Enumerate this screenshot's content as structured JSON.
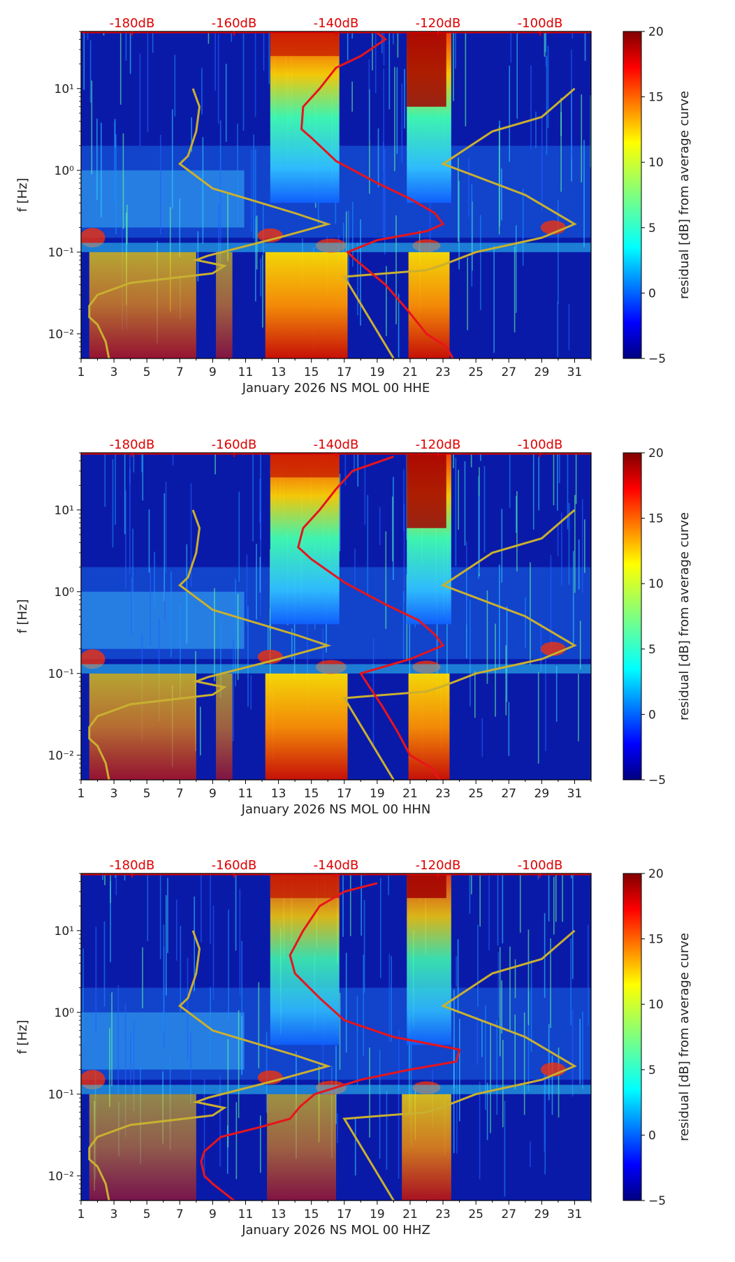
{
  "chart_data": [
    {
      "type": "heatmap",
      "xlabel": "January 2026 NS MOL 00 HHE",
      "ylabel": "f [Hz]",
      "x_ticks": [
        "1",
        "3",
        "5",
        "7",
        "9",
        "11",
        "13",
        "15",
        "17",
        "19",
        "21",
        "23",
        "25",
        "27",
        "29",
        "31"
      ],
      "y_ticks": [
        "10⁻²",
        "10⁻¹",
        "10⁰",
        "10¹"
      ],
      "xlim": [
        1,
        32
      ],
      "ylim_hz": [
        0.005,
        50
      ],
      "db_scale_labels": [
        "-180dB",
        "-160dB",
        "-140dB",
        "-120dB",
        "-100dB"
      ],
      "db_scale_range": [
        -190,
        -90
      ],
      "colorbar": {
        "label": "residual [dB] from average curve",
        "min": -5,
        "max": 20,
        "ticks": [
          "20",
          "15",
          "10",
          "5",
          "0",
          "−5"
        ]
      },
      "noise_model_curve": [
        [
          2.7,
          0.005
        ],
        [
          2.5,
          0.008
        ],
        [
          2.0,
          0.013
        ],
        [
          1.5,
          0.016
        ],
        [
          1.5,
          0.022
        ],
        [
          2.0,
          0.03
        ],
        [
          4.0,
          0.042
        ],
        [
          9.0,
          0.055
        ],
        [
          9.7,
          0.068
        ],
        [
          8.0,
          0.08
        ],
        [
          8.7,
          0.09
        ],
        [
          13.0,
          0.15
        ],
        [
          16.0,
          0.22
        ],
        [
          14.0,
          0.3
        ],
        [
          9.0,
          0.6
        ],
        [
          7.0,
          1.2
        ],
        [
          7.5,
          1.5
        ],
        [
          8.0,
          3.0
        ],
        [
          8.2,
          6.0
        ],
        [
          7.8,
          10.0
        ]
      ],
      "noise_model_curve_high": [
        [
          20.0,
          0.005
        ],
        [
          17.0,
          0.05
        ],
        [
          22.0,
          0.06
        ],
        [
          23.0,
          0.07
        ],
        [
          25.0,
          0.1
        ],
        [
          29.0,
          0.15
        ],
        [
          31.0,
          0.22
        ],
        [
          28.0,
          0.5
        ],
        [
          23.0,
          1.2
        ],
        [
          26.0,
          3.0
        ],
        [
          29.0,
          4.5
        ],
        [
          31.0,
          10.0
        ]
      ],
      "average_curve": [
        [
          23.6,
          0.005
        ],
        [
          23.2,
          0.007
        ],
        [
          22.0,
          0.01
        ],
        [
          20.8,
          0.02
        ],
        [
          19.5,
          0.04
        ],
        [
          17.7,
          0.08
        ],
        [
          17.2,
          0.1
        ],
        [
          19.0,
          0.14
        ],
        [
          22.0,
          0.18
        ],
        [
          23.0,
          0.22
        ],
        [
          22.5,
          0.3
        ],
        [
          21.0,
          0.45
        ],
        [
          19.0,
          0.7
        ],
        [
          16.5,
          1.3
        ],
        [
          15.0,
          2.5
        ],
        [
          14.4,
          3.2
        ],
        [
          14.5,
          6.0
        ],
        [
          15.5,
          10.0
        ],
        [
          16.5,
          18.0
        ],
        [
          18.0,
          25.0
        ],
        [
          19.5,
          40.0
        ],
        [
          19.0,
          48.0
        ]
      ]
    },
    {
      "type": "heatmap",
      "xlabel": "January 2026 NS MOL 00 HHN",
      "ylabel": "f [Hz]",
      "x_ticks": [
        "1",
        "3",
        "5",
        "7",
        "9",
        "11",
        "13",
        "15",
        "17",
        "19",
        "21",
        "23",
        "25",
        "27",
        "29",
        "31"
      ],
      "y_ticks": [
        "10⁻²",
        "10⁻¹",
        "10⁰",
        "10¹"
      ],
      "xlim": [
        1,
        32
      ],
      "ylim_hz": [
        0.005,
        50
      ],
      "db_scale_labels": [
        "-180dB",
        "-160dB",
        "-140dB",
        "-120dB",
        "-100dB"
      ],
      "db_scale_range": [
        -190,
        -90
      ],
      "colorbar": {
        "label": "residual [dB] from average curve",
        "min": -5,
        "max": 20,
        "ticks": [
          "20",
          "15",
          "10",
          "5",
          "0",
          "−5"
        ]
      },
      "noise_model_curve": [
        [
          2.7,
          0.005
        ],
        [
          2.5,
          0.008
        ],
        [
          2.0,
          0.013
        ],
        [
          1.5,
          0.016
        ],
        [
          1.5,
          0.022
        ],
        [
          2.0,
          0.03
        ],
        [
          4.0,
          0.042
        ],
        [
          9.0,
          0.055
        ],
        [
          9.7,
          0.068
        ],
        [
          8.0,
          0.08
        ],
        [
          8.7,
          0.09
        ],
        [
          13.0,
          0.15
        ],
        [
          16.0,
          0.22
        ],
        [
          14.0,
          0.3
        ],
        [
          9.0,
          0.6
        ],
        [
          7.0,
          1.2
        ],
        [
          7.5,
          1.5
        ],
        [
          8.0,
          3.0
        ],
        [
          8.2,
          6.0
        ],
        [
          7.8,
          10.0
        ]
      ],
      "noise_model_curve_high": [
        [
          20.0,
          0.005
        ],
        [
          17.0,
          0.05
        ],
        [
          22.0,
          0.06
        ],
        [
          23.0,
          0.07
        ],
        [
          25.0,
          0.1
        ],
        [
          29.0,
          0.15
        ],
        [
          31.0,
          0.22
        ],
        [
          28.0,
          0.5
        ],
        [
          23.0,
          1.2
        ],
        [
          26.0,
          3.0
        ],
        [
          29.0,
          4.5
        ],
        [
          31.0,
          10.0
        ]
      ],
      "average_curve": [
        [
          22.8,
          0.005
        ],
        [
          22.3,
          0.007
        ],
        [
          21.0,
          0.01
        ],
        [
          20.2,
          0.02
        ],
        [
          19.3,
          0.04
        ],
        [
          18.5,
          0.07
        ],
        [
          18.0,
          0.1
        ],
        [
          21.0,
          0.15
        ],
        [
          23.0,
          0.22
        ],
        [
          22.5,
          0.3
        ],
        [
          21.5,
          0.45
        ],
        [
          19.5,
          0.7
        ],
        [
          17.0,
          1.3
        ],
        [
          15.0,
          2.5
        ],
        [
          14.2,
          3.5
        ],
        [
          14.5,
          6.0
        ],
        [
          15.5,
          10.0
        ],
        [
          16.5,
          18.0
        ],
        [
          17.5,
          30.0
        ],
        [
          20.0,
          45.0
        ]
      ]
    },
    {
      "type": "heatmap",
      "xlabel": "January 2026 NS MOL 00 HHZ",
      "ylabel": "f [Hz]",
      "x_ticks": [
        "1",
        "3",
        "5",
        "7",
        "9",
        "11",
        "13",
        "15",
        "17",
        "19",
        "21",
        "23",
        "25",
        "27",
        "29",
        "31"
      ],
      "y_ticks": [
        "10⁻²",
        "10⁻¹",
        "10⁰",
        "10¹"
      ],
      "xlim": [
        1,
        32
      ],
      "ylim_hz": [
        0.005,
        50
      ],
      "db_scale_labels": [
        "-180dB",
        "-160dB",
        "-140dB",
        "-120dB",
        "-100dB"
      ],
      "db_scale_range": [
        -190,
        -90
      ],
      "colorbar": {
        "label": "residual [dB] from average curve",
        "min": -5,
        "max": 20,
        "ticks": [
          "20",
          "15",
          "10",
          "5",
          "0",
          "−5"
        ]
      },
      "noise_model_curve": [
        [
          2.7,
          0.005
        ],
        [
          2.5,
          0.008
        ],
        [
          2.0,
          0.013
        ],
        [
          1.5,
          0.016
        ],
        [
          1.5,
          0.022
        ],
        [
          2.0,
          0.03
        ],
        [
          4.0,
          0.042
        ],
        [
          9.0,
          0.055
        ],
        [
          9.7,
          0.068
        ],
        [
          8.0,
          0.08
        ],
        [
          8.7,
          0.09
        ],
        [
          13.0,
          0.15
        ],
        [
          16.0,
          0.22
        ],
        [
          14.0,
          0.3
        ],
        [
          9.0,
          0.6
        ],
        [
          7.0,
          1.2
        ],
        [
          7.5,
          1.5
        ],
        [
          8.0,
          3.0
        ],
        [
          8.2,
          6.0
        ],
        [
          7.8,
          10.0
        ]
      ],
      "noise_model_curve_high": [
        [
          20.0,
          0.005
        ],
        [
          17.0,
          0.05
        ],
        [
          22.0,
          0.06
        ],
        [
          23.0,
          0.07
        ],
        [
          25.0,
          0.1
        ],
        [
          29.0,
          0.15
        ],
        [
          31.0,
          0.22
        ],
        [
          28.0,
          0.5
        ],
        [
          23.0,
          1.2
        ],
        [
          26.0,
          3.0
        ],
        [
          29.0,
          4.5
        ],
        [
          31.0,
          10.0
        ]
      ],
      "average_curve": [
        [
          10.3,
          0.005
        ],
        [
          9.0,
          0.008
        ],
        [
          8.5,
          0.01
        ],
        [
          8.3,
          0.015
        ],
        [
          8.5,
          0.02
        ],
        [
          9.5,
          0.03
        ],
        [
          12.0,
          0.04
        ],
        [
          13.7,
          0.05
        ],
        [
          14.3,
          0.07
        ],
        [
          15.2,
          0.1
        ],
        [
          18.0,
          0.15
        ],
        [
          21.0,
          0.2
        ],
        [
          23.8,
          0.25
        ],
        [
          24.0,
          0.35
        ],
        [
          20.0,
          0.5
        ],
        [
          17.0,
          0.8
        ],
        [
          15.5,
          1.5
        ],
        [
          14.0,
          3.0
        ],
        [
          13.7,
          5.0
        ],
        [
          14.5,
          10.0
        ],
        [
          15.5,
          20.0
        ],
        [
          17.0,
          30.0
        ],
        [
          19.0,
          38.0
        ]
      ]
    }
  ]
}
